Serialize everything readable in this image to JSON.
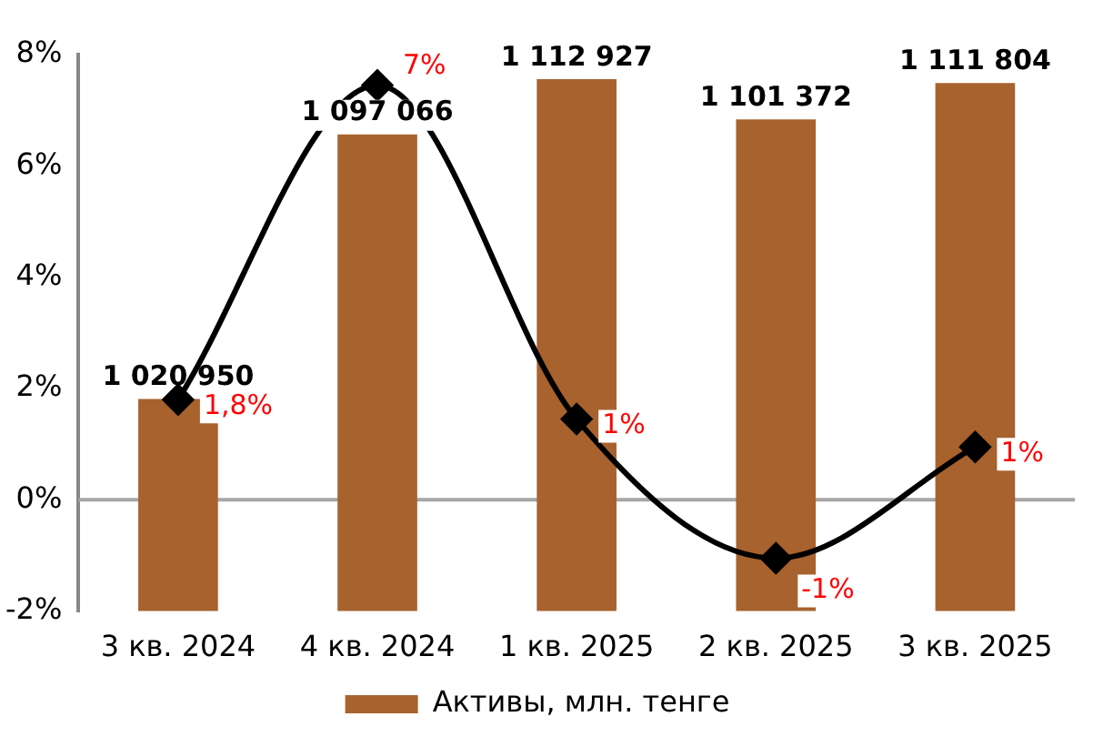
{
  "chart_data": {
    "type": "bar",
    "categories": [
      "3 кв. 2024",
      "4 кв. 2024",
      "1 кв. 2025",
      "2 кв. 2025",
      "3 кв. 2025"
    ],
    "series": [
      {
        "name": "Активы, млн. тенге",
        "type": "bar",
        "axis": "y2",
        "color": "#a8622e",
        "values": [
          1020950,
          1097066,
          1112927,
          1101372,
          1111804
        ],
        "data_labels": true
      },
      {
        "type": "line",
        "color": "#000000",
        "values": [
          1.8,
          7.45,
          1.45,
          -1.05,
          0.95
        ],
        "value_labels": [
          "1,8%",
          "7%",
          "1%",
          "-1%",
          "1%"
        ],
        "marker": "diamond"
      }
    ],
    "ylim": [
      -2,
      8
    ],
    "yticks": [
      {
        "value": -2,
        "label": "-2%"
      },
      {
        "value": 0,
        "label": "0%"
      },
      {
        "value": 2,
        "label": "2%"
      },
      {
        "value": 4,
        "label": "4%"
      },
      {
        "value": 6,
        "label": "6%"
      },
      {
        "value": 8,
        "label": "8%"
      }
    ],
    "y2lim": [
      960000,
      1120000
    ],
    "ref_lines": [
      {
        "axis": "y",
        "value": 0,
        "color": "#a6a6a6"
      }
    ],
    "grid": false,
    "legend": "bottom"
  }
}
